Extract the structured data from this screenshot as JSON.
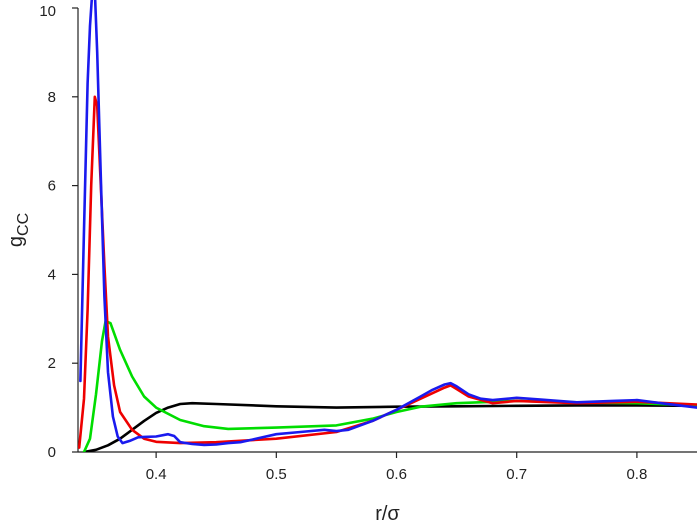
{
  "chart_data": {
    "type": "line",
    "title": "",
    "xlabel": "r/σ",
    "ylabel_main": "g",
    "ylabel_sub": "CC",
    "xlim": [
      0.335,
      0.85
    ],
    "ylim": [
      0,
      10
    ],
    "x_ticks": [
      {
        "value": 0.4,
        "label": "0.4"
      },
      {
        "value": 0.5,
        "label": "0.5"
      },
      {
        "value": 0.6,
        "label": "0.6"
      },
      {
        "value": 0.7,
        "label": "0.7"
      },
      {
        "value": 0.8,
        "label": "0.8"
      }
    ],
    "y_ticks": [
      {
        "value": 0,
        "label": "0"
      },
      {
        "value": 2,
        "label": "2"
      },
      {
        "value": 4,
        "label": "4"
      },
      {
        "value": 6,
        "label": "6"
      },
      {
        "value": 8,
        "label": "8"
      },
      {
        "value": 10,
        "label": "10"
      }
    ],
    "grid": false,
    "legend": "none",
    "series": [
      {
        "color": "#000000",
        "points": [
          [
            0.34,
            0.0
          ],
          [
            0.35,
            0.05
          ],
          [
            0.36,
            0.15
          ],
          [
            0.37,
            0.3
          ],
          [
            0.38,
            0.5
          ],
          [
            0.39,
            0.7
          ],
          [
            0.4,
            0.88
          ],
          [
            0.41,
            1.0
          ],
          [
            0.42,
            1.08
          ],
          [
            0.43,
            1.1
          ],
          [
            0.45,
            1.08
          ],
          [
            0.5,
            1.03
          ],
          [
            0.55,
            1.0
          ],
          [
            0.6,
            1.02
          ],
          [
            0.65,
            1.03
          ],
          [
            0.7,
            1.04
          ],
          [
            0.75,
            1.05
          ],
          [
            0.8,
            1.05
          ],
          [
            0.85,
            1.04
          ]
        ]
      },
      {
        "color": "#00dd00",
        "points": [
          [
            0.34,
            0.0
          ],
          [
            0.345,
            0.3
          ],
          [
            0.35,
            1.3
          ],
          [
            0.355,
            2.5
          ],
          [
            0.358,
            2.95
          ],
          [
            0.362,
            2.9
          ],
          [
            0.37,
            2.3
          ],
          [
            0.38,
            1.7
          ],
          [
            0.39,
            1.25
          ],
          [
            0.4,
            1.0
          ],
          [
            0.42,
            0.72
          ],
          [
            0.44,
            0.58
          ],
          [
            0.46,
            0.52
          ],
          [
            0.5,
            0.55
          ],
          [
            0.55,
            0.6
          ],
          [
            0.58,
            0.75
          ],
          [
            0.6,
            0.9
          ],
          [
            0.62,
            1.02
          ],
          [
            0.65,
            1.1
          ],
          [
            0.7,
            1.15
          ],
          [
            0.75,
            1.12
          ],
          [
            0.8,
            1.1
          ],
          [
            0.85,
            1.05
          ]
        ]
      },
      {
        "color": "#ee0000",
        "points": [
          [
            0.336,
            0.1
          ],
          [
            0.34,
            1.2
          ],
          [
            0.343,
            3.2
          ],
          [
            0.346,
            6.0
          ],
          [
            0.349,
            8.0
          ],
          [
            0.351,
            7.8
          ],
          [
            0.354,
            6.0
          ],
          [
            0.357,
            4.2
          ],
          [
            0.36,
            2.6
          ],
          [
            0.365,
            1.5
          ],
          [
            0.37,
            0.9
          ],
          [
            0.38,
            0.5
          ],
          [
            0.39,
            0.3
          ],
          [
            0.4,
            0.23
          ],
          [
            0.42,
            0.2
          ],
          [
            0.45,
            0.22
          ],
          [
            0.5,
            0.3
          ],
          [
            0.55,
            0.45
          ],
          [
            0.58,
            0.7
          ],
          [
            0.6,
            0.95
          ],
          [
            0.62,
            1.2
          ],
          [
            0.64,
            1.45
          ],
          [
            0.645,
            1.5
          ],
          [
            0.65,
            1.42
          ],
          [
            0.66,
            1.25
          ],
          [
            0.68,
            1.1
          ],
          [
            0.7,
            1.15
          ],
          [
            0.75,
            1.1
          ],
          [
            0.8,
            1.13
          ],
          [
            0.85,
            1.07
          ]
        ]
      },
      {
        "color": "#1a1aee",
        "points": [
          [
            0.337,
            1.6
          ],
          [
            0.34,
            5.0
          ],
          [
            0.343,
            8.3
          ],
          [
            0.345,
            9.6
          ],
          [
            0.347,
            10.4
          ],
          [
            0.349,
            10.4
          ],
          [
            0.351,
            9.0
          ],
          [
            0.354,
            6.2
          ],
          [
            0.357,
            3.5
          ],
          [
            0.36,
            1.8
          ],
          [
            0.364,
            0.8
          ],
          [
            0.368,
            0.35
          ],
          [
            0.372,
            0.2
          ],
          [
            0.378,
            0.25
          ],
          [
            0.385,
            0.33
          ],
          [
            0.39,
            0.34
          ],
          [
            0.4,
            0.35
          ],
          [
            0.41,
            0.4
          ],
          [
            0.415,
            0.36
          ],
          [
            0.42,
            0.22
          ],
          [
            0.43,
            0.18
          ],
          [
            0.44,
            0.16
          ],
          [
            0.45,
            0.17
          ],
          [
            0.46,
            0.2
          ],
          [
            0.47,
            0.22
          ],
          [
            0.48,
            0.28
          ],
          [
            0.5,
            0.4
          ],
          [
            0.52,
            0.45
          ],
          [
            0.54,
            0.5
          ],
          [
            0.55,
            0.47
          ],
          [
            0.56,
            0.5
          ],
          [
            0.58,
            0.7
          ],
          [
            0.6,
            0.95
          ],
          [
            0.62,
            1.25
          ],
          [
            0.63,
            1.4
          ],
          [
            0.64,
            1.52
          ],
          [
            0.645,
            1.55
          ],
          [
            0.65,
            1.48
          ],
          [
            0.66,
            1.3
          ],
          [
            0.67,
            1.2
          ],
          [
            0.68,
            1.17
          ],
          [
            0.7,
            1.22
          ],
          [
            0.72,
            1.18
          ],
          [
            0.75,
            1.12
          ],
          [
            0.78,
            1.15
          ],
          [
            0.8,
            1.17
          ],
          [
            0.82,
            1.1
          ],
          [
            0.85,
            1.0
          ]
        ]
      }
    ]
  }
}
